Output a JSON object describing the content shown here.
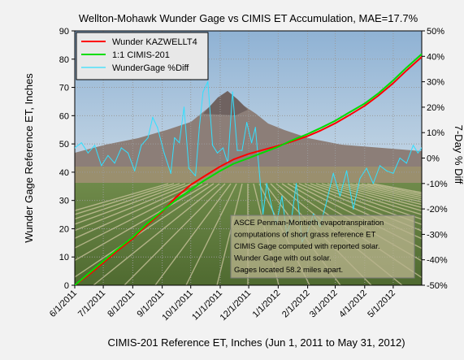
{
  "chart_data": {
    "type": "line",
    "title": "Wellton-Mohawk Wunder Gage vs CIMIS  ET Accumulation, MAE=17.7%",
    "xlabel": "CIMIS-201 Reference ET, Inches (Jun 1, 2011 to May 31, 2012)",
    "ylabel": "Wunder Gage Reference ET, Inches",
    "y2label": "7-Day % Diff",
    "x_tick_labels": [
      "6/1/2011",
      "7/1/2011",
      "8/1/2011",
      "9/1/2011",
      "10/1/2011",
      "11/1/2011",
      "12/1/2011",
      "1/1/2012",
      "2/1/2012",
      "3/1/2012",
      "4/1/2012",
      "5/1/2012"
    ],
    "x_tick_days": [
      0,
      30,
      61,
      92,
      122,
      153,
      183,
      214,
      245,
      274,
      305,
      335
    ],
    "xlim": [
      "6/1/2011",
      "5/31/2012"
    ],
    "ylim": [
      0,
      90
    ],
    "y_ticks": [
      0,
      10,
      20,
      30,
      40,
      50,
      60,
      70,
      80,
      90
    ],
    "y2lim": [
      -0.5,
      0.5
    ],
    "y2_ticks": [
      "50%",
      "40%",
      "30%",
      "20%",
      "10%",
      "0%",
      "-10%",
      "-20%",
      "-30%",
      "-40%",
      "-50%"
    ],
    "legend_placement": "top-left",
    "grid": true,
    "series": [
      {
        "name": "Wunder KAZWELLT4",
        "color": "#ff0000",
        "axis": "left",
        "points": [
          [
            "6/1/2011",
            0
          ],
          [
            "6/15/2011",
            3.5
          ],
          [
            "7/1/2011",
            8
          ],
          [
            "7/15/2011",
            12
          ],
          [
            "8/1/2011",
            16.5
          ],
          [
            "8/15/2011",
            21
          ],
          [
            "9/1/2011",
            26
          ],
          [
            "9/15/2011",
            31
          ],
          [
            "10/1/2011",
            35.5
          ],
          [
            "10/15/2011",
            38.5
          ],
          [
            "11/1/2011",
            42
          ],
          [
            "11/15/2011",
            44.5
          ],
          [
            "12/1/2011",
            46.5
          ],
          [
            "12/15/2011",
            47.8
          ],
          [
            "1/1/2012",
            49.3
          ],
          [
            "1/15/2012",
            50.8
          ],
          [
            "2/1/2012",
            52.8
          ],
          [
            "2/15/2012",
            54.8
          ],
          [
            "3/1/2012",
            57.3
          ],
          [
            "3/15/2012",
            60
          ],
          [
            "4/1/2012",
            63.5
          ],
          [
            "4/15/2012",
            67
          ],
          [
            "5/1/2012",
            71.5
          ],
          [
            "5/15/2012",
            76
          ],
          [
            "5/31/2012",
            80.8
          ]
        ]
      },
      {
        "name": "1:1 CIMIS-201",
        "color": "#00dd00",
        "axis": "left",
        "points": [
          [
            "6/1/2011",
            0
          ],
          [
            "6/15/2011",
            4
          ],
          [
            "7/1/2011",
            8.5
          ],
          [
            "7/15/2011",
            12.5
          ],
          [
            "8/1/2011",
            17
          ],
          [
            "8/15/2011",
            21.5
          ],
          [
            "9/1/2011",
            26.3
          ],
          [
            "9/15/2011",
            30
          ],
          [
            "10/1/2011",
            33.8
          ],
          [
            "10/15/2011",
            37
          ],
          [
            "11/1/2011",
            40.5
          ],
          [
            "11/15/2011",
            43
          ],
          [
            "12/1/2011",
            45
          ],
          [
            "12/15/2011",
            46.8
          ],
          [
            "1/1/2012",
            49
          ],
          [
            "1/15/2012",
            51.2
          ],
          [
            "2/1/2012",
            53.5
          ],
          [
            "2/15/2012",
            55.7
          ],
          [
            "3/1/2012",
            58.2
          ],
          [
            "3/15/2012",
            61
          ],
          [
            "4/1/2012",
            64.3
          ],
          [
            "4/15/2012",
            67.8
          ],
          [
            "5/1/2012",
            72.5
          ],
          [
            "5/15/2012",
            77
          ],
          [
            "5/31/2012",
            81.8
          ]
        ]
      },
      {
        "name": "WunderGage %Diff",
        "color": "#33e0ff",
        "axis": "right",
        "points": [
          [
            "6/1/2011",
            0.04
          ],
          [
            "6/8/2011",
            0.06
          ],
          [
            "6/15/2011",
            0.02
          ],
          [
            "6/22/2011",
            0.05
          ],
          [
            "6/29/2011",
            -0.03
          ],
          [
            "7/6/2011",
            0.01
          ],
          [
            "7/13/2011",
            -0.02
          ],
          [
            "7/20/2011",
            0.04
          ],
          [
            "7/27/2011",
            0.02
          ],
          [
            "8/3/2011",
            -0.05
          ],
          [
            "8/10/2011",
            0.05
          ],
          [
            "8/17/2011",
            0.08
          ],
          [
            "8/22/2011",
            0.16
          ],
          [
            "8/27/2011",
            0.12
          ],
          [
            "9/3/2011",
            0.02
          ],
          [
            "9/10/2011",
            -0.06
          ],
          [
            "9/14/2011",
            0.08
          ],
          [
            "9/19/2011",
            0.06
          ],
          [
            "9/24/2011",
            0.2
          ],
          [
            "9/29/2011",
            -0.04
          ],
          [
            "10/6/2011",
            -0.07
          ],
          [
            "10/10/2011",
            0.12
          ],
          [
            "10/14/2011",
            0.26
          ],
          [
            "10/19/2011",
            0.3
          ],
          [
            "10/24/2011",
            0.05
          ],
          [
            "10/29/2011",
            0.02
          ],
          [
            "11/4/2011",
            0.04
          ],
          [
            "11/9/2011",
            -0.02
          ],
          [
            "11/14/2011",
            0.26
          ],
          [
            "11/19/2011",
            0.03
          ],
          [
            "11/24/2011",
            0.03
          ],
          [
            "11/29/2011",
            0.14
          ],
          [
            "12/4/2011",
            0.06
          ],
          [
            "12/8/2011",
            0.12
          ],
          [
            "12/12/2011",
            -0.05
          ],
          [
            "12/16/2011",
            -0.22
          ],
          [
            "12/20/2011",
            -0.1
          ],
          [
            "12/25/2011",
            -0.19
          ],
          [
            "12/30/2011",
            -0.26
          ],
          [
            "1/5/2012",
            -0.15
          ],
          [
            "1/10/2012",
            -0.3
          ],
          [
            "1/15/2012",
            -0.24
          ],
          [
            "1/20/2012",
            -0.1
          ],
          [
            "1/26/2012",
            -0.33
          ],
          [
            "2/1/2012",
            -0.29
          ],
          [
            "2/7/2012",
            -0.22
          ],
          [
            "2/14/2012",
            -0.27
          ],
          [
            "2/21/2012",
            -0.17
          ],
          [
            "2/28/2012",
            -0.06
          ],
          [
            "3/6/2012",
            -0.15
          ],
          [
            "3/13/2012",
            -0.05
          ],
          [
            "3/20/2012",
            -0.2
          ],
          [
            "3/27/2012",
            -0.08
          ],
          [
            "4/3/2012",
            -0.04
          ],
          [
            "4/10/2012",
            -0.1
          ],
          [
            "4/17/2012",
            -0.03
          ],
          [
            "4/24/2012",
            -0.05
          ],
          [
            "5/1/2012",
            -0.06
          ],
          [
            "5/8/2012",
            0.0
          ],
          [
            "5/15/2012",
            -0.02
          ],
          [
            "5/22/2012",
            0.05
          ],
          [
            "5/27/2012",
            0.02
          ],
          [
            "5/31/2012",
            0.04
          ]
        ]
      }
    ],
    "annotation": [
      "ASCE Penman-Montieth evapotranspiration",
      "computations of short grass reference ET",
      "CIMIS Gage computed with reported solar.",
      "Wunder Gage with out solar.",
      "Gages located 58.2 miles apart."
    ]
  }
}
